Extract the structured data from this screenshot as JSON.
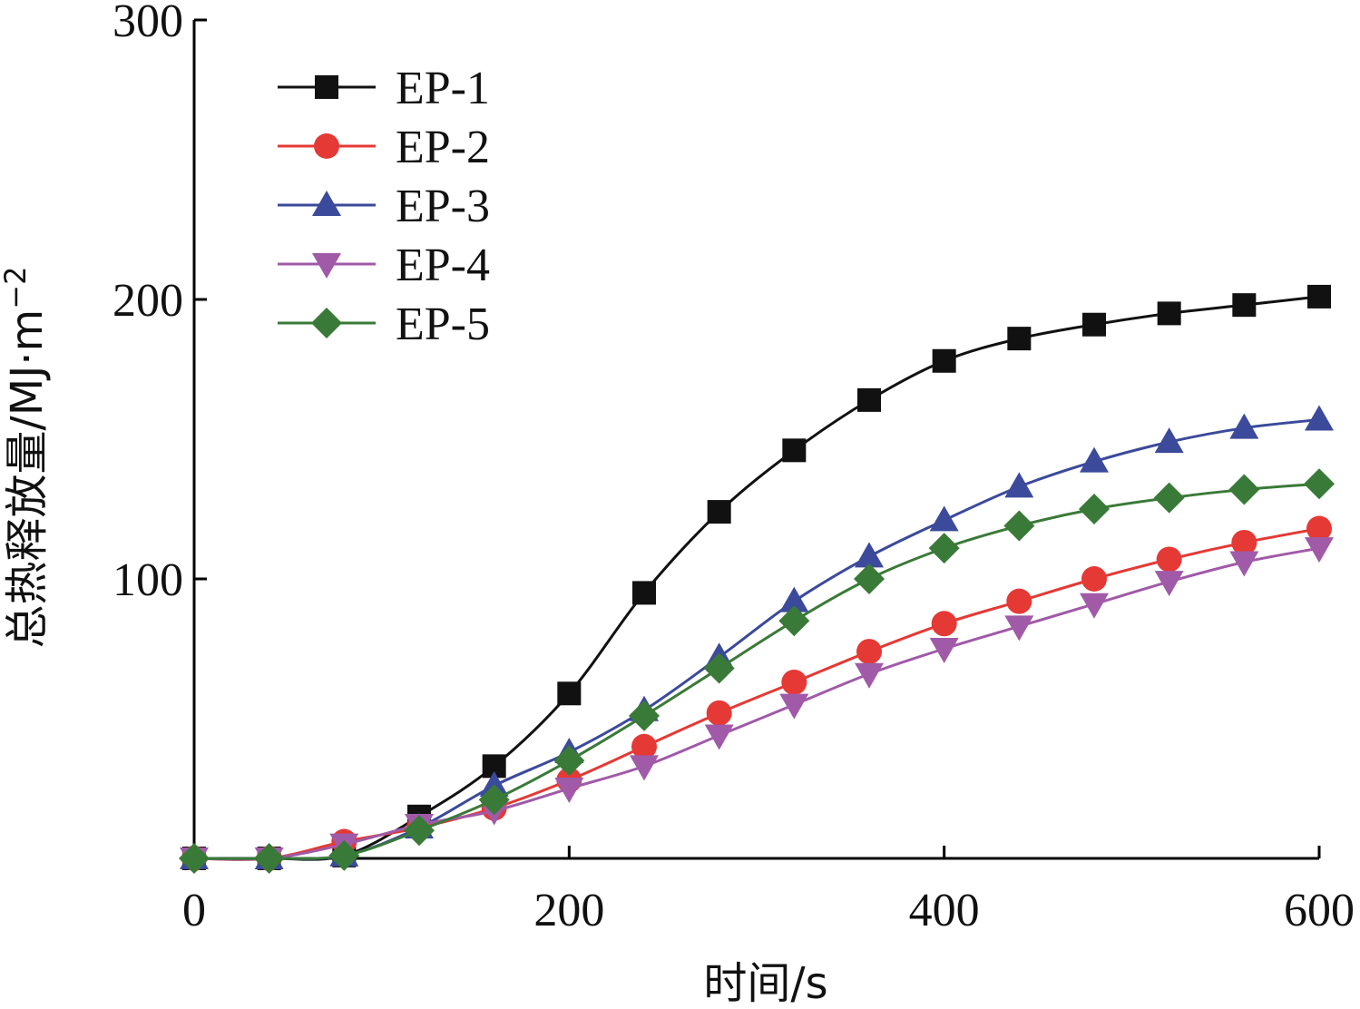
{
  "chart_data": {
    "type": "line",
    "title": "",
    "xlabel": "时间/s",
    "ylabel": "总热释放量/MJ·m",
    "ylabel_superscript": "−2",
    "xlim": [
      0,
      600
    ],
    "ylim": [
      0,
      300
    ],
    "x_ticks": [
      "0",
      "200",
      "400",
      "600"
    ],
    "y_ticks": [
      "100",
      "200",
      "300"
    ],
    "grid": false,
    "legend_position": "top-left",
    "x": [
      0,
      40,
      80,
      120,
      160,
      200,
      240,
      280,
      320,
      360,
      400,
      440,
      480,
      520,
      560,
      600
    ],
    "series": [
      {
        "name": "EP-1",
        "color": "#111111",
        "marker": "square",
        "values": [
          0,
          0,
          1,
          15,
          33,
          59,
          95,
          124,
          146,
          164,
          178,
          186,
          191,
          195,
          198,
          201
        ]
      },
      {
        "name": "EP-2",
        "color": "#e53935",
        "marker": "circle",
        "values": [
          0,
          0,
          6,
          11,
          18,
          28,
          40,
          52,
          63,
          74,
          84,
          92,
          100,
          107,
          113,
          118
        ]
      },
      {
        "name": "EP-3",
        "color": "#3b4a9b",
        "marker": "triangle-up",
        "values": [
          0,
          0,
          1,
          11,
          26,
          38,
          53,
          72,
          92,
          108,
          121,
          133,
          142,
          149,
          154,
          157
        ]
      },
      {
        "name": "EP-4",
        "color": "#a05aa8",
        "marker": "triangle-down",
        "values": [
          0,
          0,
          5,
          12,
          17,
          25,
          33,
          44,
          55,
          66,
          75,
          83,
          91,
          99,
          106,
          111
        ]
      },
      {
        "name": "EP-5",
        "color": "#3a7a38",
        "marker": "diamond",
        "values": [
          0,
          0,
          1,
          10,
          21,
          35,
          51,
          68,
          85,
          100,
          111,
          119,
          125,
          129,
          132,
          134
        ]
      }
    ]
  }
}
